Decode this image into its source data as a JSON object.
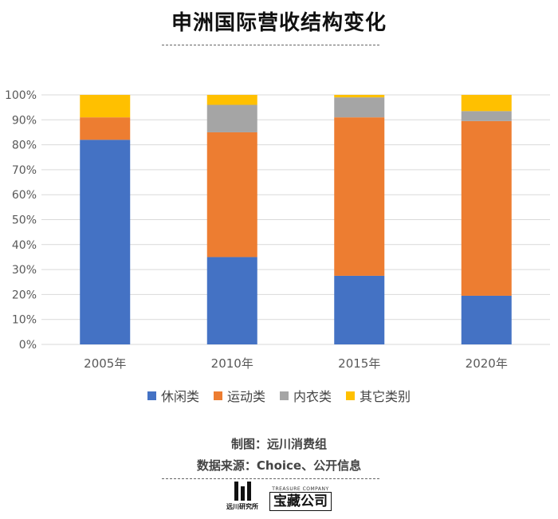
{
  "header": {
    "title": "申洲国际营收结构变化"
  },
  "chart_data": {
    "type": "bar",
    "stacked": true,
    "categories": [
      "2005年",
      "2010年",
      "2015年",
      "2020年"
    ],
    "y_ticks": [
      "0%",
      "10%",
      "20%",
      "30%",
      "40%",
      "50%",
      "60%",
      "70%",
      "80%",
      "90%",
      "100%"
    ],
    "ylim": [
      0,
      100
    ],
    "grid": true,
    "legend_position": "bottom",
    "series": [
      {
        "name": "休闲类",
        "color": "#4472C4",
        "values": [
          82,
          35,
          27.5,
          19.5
        ]
      },
      {
        "name": "运动类",
        "color": "#ED7D31",
        "values": [
          9,
          50,
          63.5,
          70
        ]
      },
      {
        "name": "内衣类",
        "color": "#A5A5A5",
        "values": [
          0,
          11,
          8,
          4
        ]
      },
      {
        "name": "其它类别",
        "color": "#FFC000",
        "values": [
          9,
          4,
          1,
          6.5
        ]
      }
    ]
  },
  "footer": {
    "credit": "制图：远川消费组",
    "source": "数据来源：Choice、公开信息",
    "logo_left": "远川研究所",
    "logo_right_small": "TREASURE COMPANY",
    "logo_right": "宝藏公司"
  }
}
